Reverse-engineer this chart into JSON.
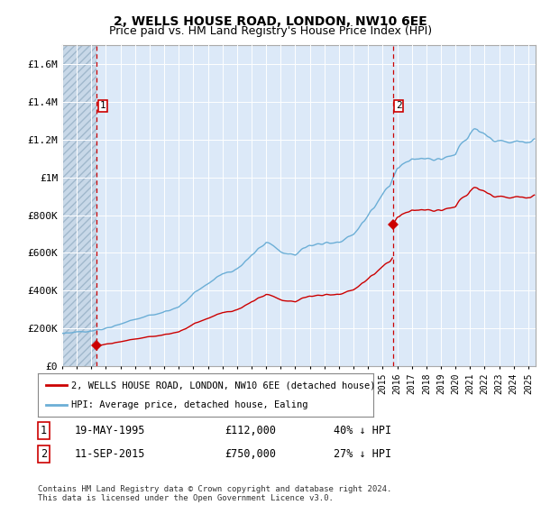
{
  "title": "2, WELLS HOUSE ROAD, LONDON, NW10 6EE",
  "subtitle": "Price paid vs. HM Land Registry's House Price Index (HPI)",
  "ylim": [
    0,
    1700000
  ],
  "yticks": [
    0,
    200000,
    400000,
    600000,
    800000,
    1000000,
    1200000,
    1400000,
    1600000
  ],
  "ytick_labels": [
    "£0",
    "£200K",
    "£400K",
    "£600K",
    "£800K",
    "£1M",
    "£1.2M",
    "£1.4M",
    "£1.6M"
  ],
  "background_color": "#dce9f8",
  "grid_color": "#ffffff",
  "sale1_date_num": 1995.38,
  "sale1_price": 112000,
  "sale1_label": "1",
  "sale2_date_num": 2015.7,
  "sale2_price": 750000,
  "sale2_label": "2",
  "sale1_date_str": "19-MAY-1995",
  "sale2_date_str": "11-SEP-2015",
  "sale1_price_str": "£112,000",
  "sale2_price_str": "£750,000",
  "sale1_pct": "40% ↓ HPI",
  "sale2_pct": "27% ↓ HPI",
  "legend_label_red": "2, WELLS HOUSE ROAD, LONDON, NW10 6EE (detached house)",
  "legend_label_blue": "HPI: Average price, detached house, Ealing",
  "footnote": "Contains HM Land Registry data © Crown copyright and database right 2024.\nThis data is licensed under the Open Government Licence v3.0.",
  "title_fontsize": 10,
  "subtitle_fontsize": 9,
  "hpi_color": "#6baed6",
  "price_color": "#cc0000",
  "vline_color": "#cc0000",
  "marker_color": "#cc0000",
  "xmin": 1993,
  "xmax": 2025.5
}
